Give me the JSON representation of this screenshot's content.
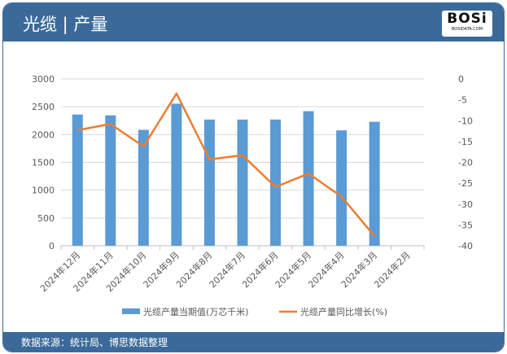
{
  "header": {
    "title": "光缆 | 产量",
    "logo_text": "BOSi",
    "logo_sub": "BOSIDATA.COM"
  },
  "footer": {
    "source": "数据来源：统计局、博思数据整理"
  },
  "chart_data": {
    "type": "bar+line",
    "title": "光缆 | 产量",
    "categories": [
      "2024年12月",
      "2024年11月",
      "2024年10月",
      "2024年9月",
      "2024年8月",
      "2024年7月",
      "2024年6月",
      "2024年5月",
      "2024年4月",
      "2024年3月",
      "2024年2月"
    ],
    "series": [
      {
        "name": "光缆产量当期值(万芯千米)",
        "type": "bar",
        "axis": "left",
        "color": "#5b9bd5",
        "values": [
          2360,
          2345,
          2085,
          2555,
          2270,
          2270,
          2270,
          2420,
          2075,
          2230,
          null
        ]
      },
      {
        "name": "光缆产量同比增长(%)",
        "type": "line",
        "axis": "right",
        "color": "#ed7d31",
        "values": [
          -12.3,
          -10.8,
          -16.2,
          -3.5,
          -19.3,
          -18.3,
          -25.9,
          -22.7,
          -28.2,
          -37.7,
          null
        ]
      }
    ],
    "left_axis": {
      "ylim": [
        0,
        3000
      ],
      "ticks": [
        0,
        500,
        1000,
        1500,
        2000,
        2500,
        3000
      ]
    },
    "right_axis": {
      "ylim": [
        -40,
        0
      ],
      "ticks": [
        0,
        -5,
        -10,
        -15,
        -20,
        -25,
        -30,
        -35,
        -40
      ]
    },
    "grid": true,
    "legend": "bottom"
  }
}
